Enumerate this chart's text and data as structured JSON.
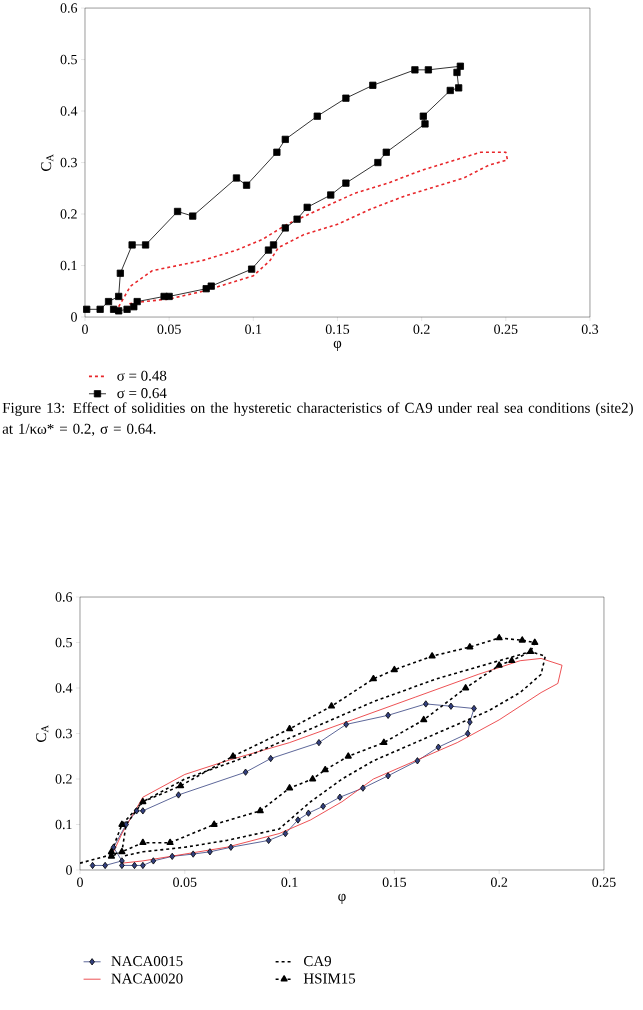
{
  "chart_data": [
    {
      "type": "line",
      "xlabel": "φ",
      "ylabel": "C$_{A}$",
      "xlim": [
        0,
        0.3
      ],
      "ylim": [
        0,
        0.6
      ],
      "xticks": [
        0,
        0.05,
        0.1,
        0.15,
        0.2,
        0.25,
        0.3
      ],
      "yticks": [
        0,
        0.1,
        0.2,
        0.3,
        0.4,
        0.5,
        0.6
      ],
      "grid": false,
      "legend": "bottom",
      "annotations": [
        "Figure 13: Effect of solidities on the hysteretic characteristics of CA9 under real sea conditions (site2) at 1/κω* = 0.2, σ = 0.64."
      ],
      "series": [
        {
          "name": "σ = 0.48",
          "color": "#e8262a",
          "line_style": "dashed",
          "marker": "none",
          "x": [
            0.02,
            0.027,
            0.04,
            0.055,
            0.07,
            0.09,
            0.105,
            0.12,
            0.14,
            0.16,
            0.18,
            0.2,
            0.22,
            0.235,
            0.25,
            0.251,
            0.24,
            0.225,
            0.21,
            0.19,
            0.17,
            0.15,
            0.13,
            0.115,
            0.11,
            0.1,
            0.085,
            0.07,
            0.05,
            0.035,
            0.025
          ],
          "values": [
            0.02,
            0.06,
            0.09,
            0.1,
            0.11,
            0.13,
            0.15,
            0.18,
            0.21,
            0.24,
            0.26,
            0.285,
            0.305,
            0.32,
            0.32,
            0.305,
            0.295,
            0.27,
            0.255,
            0.235,
            0.21,
            0.18,
            0.16,
            0.135,
            0.11,
            0.08,
            0.065,
            0.05,
            0.035,
            0.03,
            0.025
          ]
        },
        {
          "name": "σ = 0.64",
          "color": "#000000",
          "line_style": "solid",
          "marker": "square",
          "x": [
            0.001,
            0.009,
            0.014,
            0.02,
            0.021,
            0.028,
            0.036,
            0.055,
            0.064,
            0.09,
            0.096,
            0.114,
            0.119,
            0.138,
            0.155,
            0.171,
            0.196,
            0.204,
            0.223,
            0.221,
            0.222,
            0.217,
            0.201,
            0.202,
            0.179,
            0.174,
            0.155,
            0.146,
            0.132,
            0.126,
            0.119,
            0.112,
            0.109,
            0.099,
            0.075,
            0.072,
            0.05,
            0.047,
            0.031,
            0.029,
            0.025,
            0.02,
            0.017
          ],
          "values": [
            0.015,
            0.015,
            0.03,
            0.04,
            0.085,
            0.14,
            0.14,
            0.205,
            0.196,
            0.27,
            0.256,
            0.32,
            0.345,
            0.39,
            0.425,
            0.45,
            0.48,
            0.48,
            0.487,
            0.475,
            0.445,
            0.44,
            0.39,
            0.375,
            0.32,
            0.3,
            0.26,
            0.237,
            0.213,
            0.19,
            0.173,
            0.14,
            0.13,
            0.093,
            0.06,
            0.055,
            0.04,
            0.04,
            0.03,
            0.02,
            0.015,
            0.012,
            0.015
          ]
        }
      ]
    },
    {
      "type": "line",
      "xlabel": "φ",
      "ylabel": "C$_{A}$",
      "xlim": [
        0,
        0.25
      ],
      "ylim": [
        0,
        0.6
      ],
      "xticks": [
        0,
        0.05,
        0.1,
        0.15,
        0.2,
        0.25
      ],
      "yticks": [
        0,
        0.1,
        0.2,
        0.3,
        0.4,
        0.5,
        0.6
      ],
      "grid": false,
      "legend": "bottom",
      "series": [
        {
          "name": "NACA0015",
          "color": "#33407f",
          "line_style": "solid",
          "marker": "diamond",
          "x": [
            0.006,
            0.012,
            0.02,
            0.016,
            0.022,
            0.027,
            0.03,
            0.047,
            0.079,
            0.091,
            0.114,
            0.127,
            0.147,
            0.165,
            0.177,
            0.188,
            0.186,
            0.185,
            0.171,
            0.161,
            0.147,
            0.135,
            0.124,
            0.116,
            0.109,
            0.104,
            0.098,
            0.09,
            0.072,
            0.062,
            0.054,
            0.044,
            0.035,
            0.03,
            0.026,
            0.02
          ],
          "values": [
            0.01,
            0.01,
            0.02,
            0.05,
            0.1,
            0.13,
            0.13,
            0.165,
            0.215,
            0.245,
            0.28,
            0.32,
            0.34,
            0.365,
            0.36,
            0.355,
            0.325,
            0.3,
            0.27,
            0.24,
            0.207,
            0.18,
            0.16,
            0.14,
            0.125,
            0.11,
            0.08,
            0.065,
            0.05,
            0.04,
            0.035,
            0.03,
            0.02,
            0.01,
            0.01,
            0.01
          ]
        },
        {
          "name": "NACA0020",
          "color": "#e8262a",
          "line_style": "solid",
          "marker": "none",
          "x": [
            0.015,
            0.02,
            0.03,
            0.05,
            0.07,
            0.1,
            0.13,
            0.16,
            0.19,
            0.21,
            0.22,
            0.23,
            0.228,
            0.22,
            0.2,
            0.18,
            0.16,
            0.14,
            0.125,
            0.11,
            0.095,
            0.07,
            0.05,
            0.03,
            0.02
          ],
          "values": [
            0.03,
            0.08,
            0.16,
            0.21,
            0.24,
            0.28,
            0.33,
            0.38,
            0.43,
            0.46,
            0.465,
            0.45,
            0.41,
            0.39,
            0.33,
            0.28,
            0.24,
            0.2,
            0.15,
            0.11,
            0.08,
            0.05,
            0.035,
            0.02,
            0.015
          ]
        },
        {
          "name": "CA9",
          "color": "#000000",
          "line_style": "dashed",
          "marker": "none",
          "x": [
            0.0,
            0.02,
            0.022,
            0.03,
            0.05,
            0.08,
            0.11,
            0.14,
            0.17,
            0.2,
            0.215,
            0.222,
            0.22,
            0.21,
            0.195,
            0.18,
            0.16,
            0.14,
            0.125,
            0.11,
            0.095,
            0.07,
            0.05,
            0.03,
            0.02
          ],
          "values": [
            0.015,
            0.04,
            0.1,
            0.15,
            0.2,
            0.25,
            0.31,
            0.37,
            0.42,
            0.46,
            0.48,
            0.47,
            0.43,
            0.39,
            0.35,
            0.32,
            0.28,
            0.24,
            0.2,
            0.15,
            0.09,
            0.065,
            0.05,
            0.04,
            0.03
          ]
        },
        {
          "name": "HSIM15",
          "color": "#000000",
          "line_style": "dashed",
          "marker": "triangle",
          "x": [
            0.015,
            0.02,
            0.03,
            0.048,
            0.073,
            0.1,
            0.12,
            0.14,
            0.15,
            0.168,
            0.186,
            0.2,
            0.211,
            0.217,
            0.215,
            0.206,
            0.2,
            0.184,
            0.164,
            0.145,
            0.128,
            0.117,
            0.111,
            0.1,
            0.086,
            0.064,
            0.043,
            0.03,
            0.02,
            0.015
          ],
          "values": [
            0.04,
            0.1,
            0.15,
            0.185,
            0.25,
            0.31,
            0.36,
            0.42,
            0.44,
            0.47,
            0.49,
            0.51,
            0.505,
            0.5,
            0.48,
            0.46,
            0.45,
            0.4,
            0.33,
            0.28,
            0.25,
            0.22,
            0.2,
            0.18,
            0.13,
            0.1,
            0.06,
            0.06,
            0.04,
            0.03
          ]
        }
      ]
    }
  ]
}
